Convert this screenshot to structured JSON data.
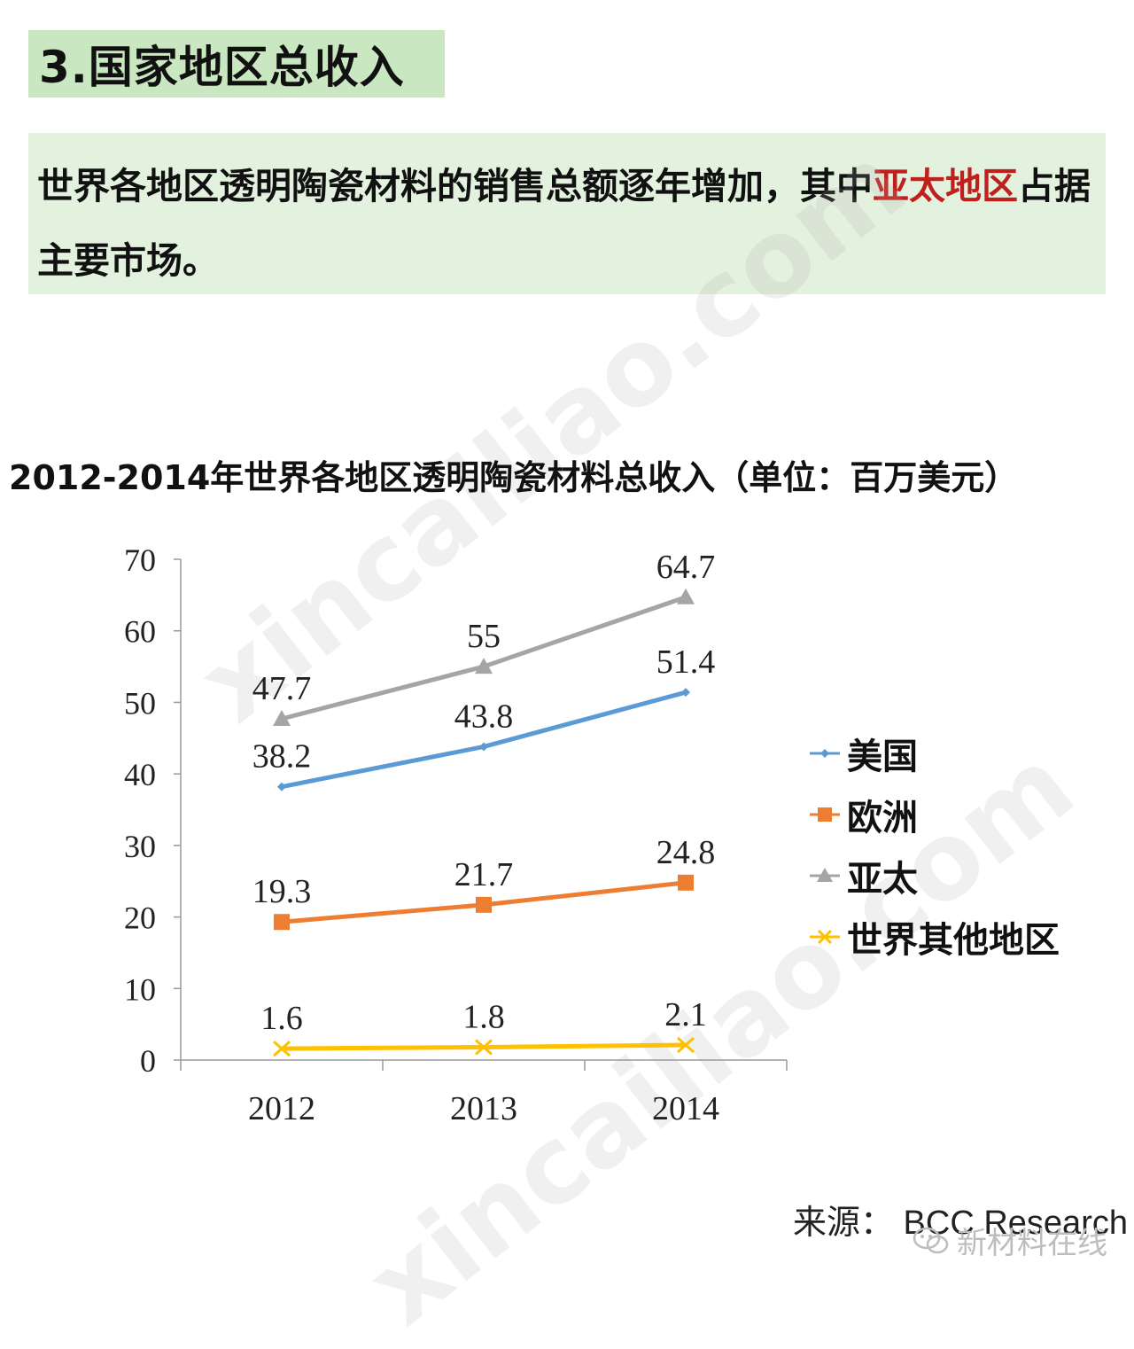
{
  "section_title": "3.国家地区总收入",
  "summary": {
    "text_before": "世界各地区透明陶瓷材料的销售总额逐年增加，其中",
    "highlight": "亚太地区",
    "text_after": "占据主要市场。"
  },
  "chart_data": {
    "type": "line",
    "title": "2012-2014年世界各地区透明陶瓷材料总收入（单位：百万美元）",
    "categories": [
      "2012",
      "2013",
      "2014"
    ],
    "ylim": [
      0,
      70
    ],
    "yticks": [
      0,
      10,
      20,
      30,
      40,
      50,
      60,
      70
    ],
    "legend_position": "right",
    "series": [
      {
        "name": "美国",
        "values": [
          38.2,
          43.8,
          51.4
        ],
        "labels": [
          "38.2",
          "43.8",
          "51.4"
        ],
        "color": "#5b9bd5",
        "marker": "diamond"
      },
      {
        "name": "欧洲",
        "values": [
          19.3,
          21.7,
          24.8
        ],
        "labels": [
          "19.3",
          "21.7",
          "24.8"
        ],
        "color": "#ed7d31",
        "marker": "square"
      },
      {
        "name": "亚太",
        "values": [
          47.7,
          55,
          64.7
        ],
        "labels": [
          "47.7",
          "55",
          "64.7"
        ],
        "color": "#a5a5a5",
        "marker": "triangle"
      },
      {
        "name": "世界其他地区",
        "values": [
          1.6,
          1.8,
          2.1
        ],
        "labels": [
          "1.6",
          "1.8",
          "2.1"
        ],
        "color": "#ffc000",
        "marker": "x"
      }
    ]
  },
  "source": "来源： BCC Research",
  "brand": "新材料在线",
  "watermark": "xincailiao.com"
}
